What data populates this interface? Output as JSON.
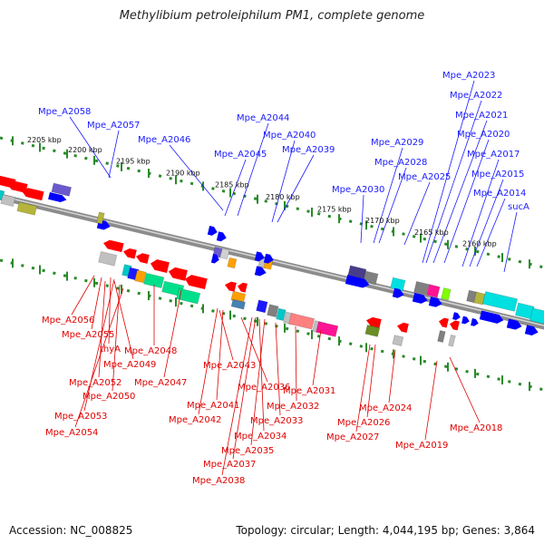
{
  "title": "Methylibium petroleiphilum PM1, complete genome",
  "footer": {
    "accession": "Accession: NC_008825",
    "topology": "Topology: circular; Length: 4,044,195 bp; Genes: 3,864"
  },
  "colors": {
    "backbone": "#808080",
    "tick_track": "#2a8a2a",
    "blue_label": "#1a1aff",
    "red_label": "#e00000",
    "forward_gene": "#0000ff",
    "reverse_gene": "#ff0000"
  },
  "ruler_labels": [
    "2205 kbp",
    "2200 kbp",
    "2195 kbp",
    "2190 kbp",
    "2185 kbp",
    "2180 kbp",
    "2175 kbp",
    "2170 kbp",
    "2165 kbp",
    "2160 kbp"
  ],
  "blue_labels": [
    "Mpe_A2058",
    "Mpe_A2057",
    "Mpe_A2046",
    "Mpe_A2045",
    "Mpe_A2044",
    "Mpe_A2040",
    "Mpe_A2039",
    "Mpe_A2030",
    "Mpe_A2029",
    "Mpe_A2028",
    "Mpe_A2025",
    "Mpe_A2023",
    "Mpe_A2022",
    "Mpe_A2021",
    "Mpe_A2020",
    "Mpe_A2017",
    "Mpe_A2015",
    "Mpe_A2014",
    "sucA"
  ],
  "red_labels": [
    "Mpe_A2056",
    "Mpe_A2055",
    "thyA",
    "Mpe_A2048",
    "Mpe_A2049",
    "Mpe_A2047",
    "Mpe_A2052",
    "Mpe_A2050",
    "Mpe_A2053",
    "Mpe_A2054",
    "Mpe_A2043",
    "Mpe_A2041",
    "Mpe_A2042",
    "Mpe_A2036",
    "Mpe_A2034",
    "Mpe_A2035",
    "Mpe_A2037",
    "Mpe_A2038",
    "Mpe_A2033",
    "Mpe_A2032",
    "Mpe_A2031",
    "Mpe_A2024",
    "Mpe_A2026",
    "Mpe_A2027",
    "Mpe_A2019",
    "Mpe_A2018"
  ]
}
